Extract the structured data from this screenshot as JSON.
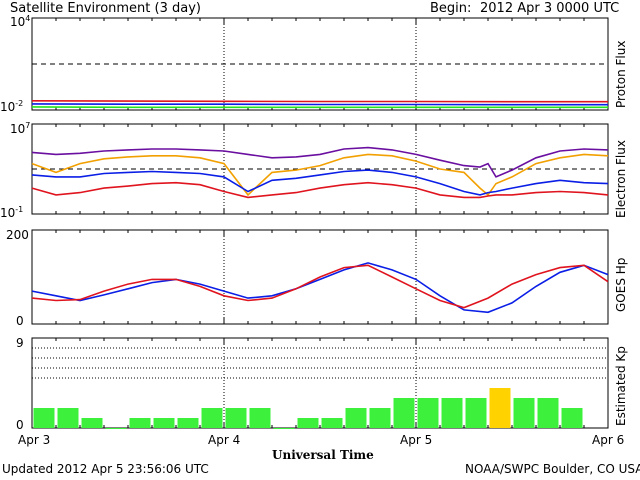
{
  "header": {
    "title": "Satellite Environment (3 day)",
    "begin_label": "Begin:",
    "begin_value": "2012 Apr 3 0000 UTC"
  },
  "footer": {
    "updated": "Updated 2012 Apr  5 23:56:06 UTC",
    "credit": "NOAA/SWPC Boulder, CO USA"
  },
  "x_axis": {
    "title": "Universal Time",
    "ticks": [
      "Apr 3",
      "Apr 4",
      "Apr 5",
      "Apr 6"
    ]
  },
  "colors": {
    "red": "#e0141e",
    "blue": "#0a1ee6",
    "green": "#22e61e",
    "purple": "#6a0fa0",
    "orange": "#f2a000",
    "kp_green": "#3cf03c",
    "kp_yellow": "#ffd200"
  },
  "chart_data": [
    {
      "type": "line",
      "panel": "proton",
      "ylabel": "Proton Flux",
      "y_scale": "log",
      "ylim": [
        0.01,
        10000
      ],
      "y_tick_base": "10",
      "y_tick_top_exp": "4",
      "y_tick_bottom_exp": "-2",
      "threshold": 10,
      "x": [
        0,
        12,
        24,
        36,
        48,
        60,
        72
      ],
      "series": [
        {
          "color": "red",
          "values": [
            0.04,
            0.038,
            0.037,
            0.036,
            0.036,
            0.035,
            0.035
          ]
        },
        {
          "color": "blue",
          "values": [
            0.025,
            0.024,
            0.024,
            0.023,
            0.023,
            0.022,
            0.022
          ]
        },
        {
          "color": "green",
          "values": [
            0.016,
            0.015,
            0.015,
            0.015,
            0.015,
            0.015,
            0.015
          ]
        }
      ]
    },
    {
      "type": "line",
      "panel": "electron",
      "ylabel": "Electron Flux",
      "y_scale": "log",
      "ylim": [
        0.1,
        10000000
      ],
      "y_tick_base": "10",
      "y_tick_top_exp": "7",
      "y_tick_bottom_exp": "-1",
      "threshold": 1000,
      "x": [
        0,
        3,
        6,
        9,
        12,
        15,
        18,
        21,
        24,
        27,
        30,
        33,
        36,
        39,
        42,
        45,
        48,
        51,
        54,
        56,
        57,
        58,
        60,
        63,
        66,
        69,
        72
      ],
      "series": [
        {
          "color": "purple",
          "values": [
            30000,
            20000,
            25000,
            40000,
            50000,
            60000,
            60000,
            50000,
            40000,
            20000,
            10000,
            12000,
            20000,
            60000,
            80000,
            50000,
            20000,
            6000,
            2000,
            1500,
            3000,
            200,
            800,
            10000,
            40000,
            60000,
            50000
          ]
        },
        {
          "color": "orange",
          "values": [
            3000,
            500,
            3000,
            8000,
            12000,
            15000,
            15000,
            10000,
            3000,
            5,
            500,
            800,
            2000,
            10000,
            20000,
            15000,
            5000,
            1000,
            500,
            20,
            5,
            50,
            200,
            3000,
            10000,
            20000,
            15000
          ]
        },
        {
          "color": "blue",
          "values": [
            300,
            200,
            200,
            400,
            500,
            600,
            500,
            400,
            200,
            10,
            100,
            150,
            300,
            600,
            800,
            500,
            200,
            50,
            10,
            5,
            8,
            10,
            20,
            50,
            100,
            60,
            50
          ]
        },
        {
          "color": "red",
          "values": [
            20,
            5,
            8,
            20,
            30,
            50,
            60,
            40,
            10,
            3,
            5,
            8,
            20,
            40,
            60,
            40,
            20,
            5,
            3,
            3,
            4,
            5,
            5,
            8,
            10,
            8,
            5
          ]
        }
      ]
    },
    {
      "type": "line",
      "panel": "goes_hp",
      "ylabel": "GOES Hp",
      "y_scale": "linear",
      "ylim": [
        0,
        200
      ],
      "y_ticks": [
        "200",
        "0"
      ],
      "x": [
        0,
        3,
        6,
        9,
        12,
        15,
        18,
        21,
        24,
        27,
        30,
        33,
        36,
        39,
        42,
        45,
        48,
        51,
        54,
        57,
        60,
        63,
        66,
        69,
        72
      ],
      "series": [
        {
          "color": "blue",
          "values": [
            70,
            60,
            50,
            62,
            75,
            88,
            95,
            85,
            70,
            55,
            60,
            75,
            95,
            115,
            130,
            115,
            95,
            60,
            30,
            25,
            45,
            80,
            110,
            125,
            105
          ]
        },
        {
          "color": "red",
          "values": [
            55,
            50,
            52,
            70,
            85,
            95,
            95,
            80,
            60,
            50,
            55,
            75,
            100,
            120,
            125,
            100,
            75,
            50,
            35,
            55,
            85,
            105,
            120,
            125,
            90
          ]
        }
      ]
    },
    {
      "type": "bar",
      "panel": "kp",
      "ylabel": "Estimated Kp",
      "ylim": [
        0,
        9
      ],
      "y_ticks": [
        "9",
        "0"
      ],
      "values": [
        2,
        2,
        1,
        0,
        1,
        1,
        1,
        2,
        2,
        2,
        0,
        1,
        1,
        2,
        2,
        3,
        3,
        3,
        3,
        4,
        3,
        3,
        2
      ],
      "highlight_index": 19,
      "bar_hours": 3
    }
  ]
}
